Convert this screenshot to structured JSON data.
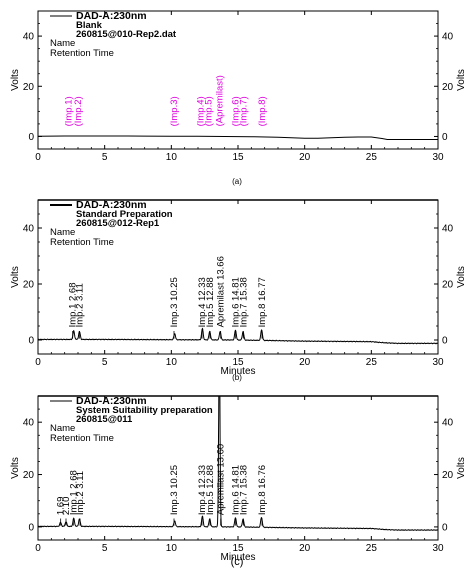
{
  "chart_data": [
    {
      "type": "line",
      "caption": "(a)",
      "legend": [
        "DAD-A:230nm",
        "Blank",
        "260815@010-Rep2.dat"
      ],
      "info": [
        "Name",
        "Retention Time"
      ],
      "xlabel": "",
      "ylabel": "Volts",
      "xlim": [
        0,
        30
      ],
      "ylim": [
        -5,
        50
      ],
      "xticks": [
        0,
        5,
        10,
        15,
        20,
        25,
        30
      ],
      "yticks": [
        0,
        20,
        40
      ],
      "label_color": "#e000e0",
      "trace_color": "#000000",
      "x": [
        0,
        2,
        5,
        8,
        10,
        12,
        14,
        16,
        18,
        19,
        20,
        21,
        22,
        23,
        24,
        25,
        25.8,
        26.2,
        27,
        28,
        29,
        30
      ],
      "y": [
        0.1,
        0.2,
        0.2,
        0.15,
        0.1,
        0.05,
        0.0,
        -0.1,
        -0.3,
        -0.5,
        -0.7,
        -0.7,
        -0.5,
        -0.3,
        -0.2,
        -0.2,
        -0.8,
        -1.2,
        -1.2,
        -1.2,
        -1.2,
        -1.2
      ],
      "peak_labels": [
        {
          "x": 2.3,
          "text": "(Imp.1)"
        },
        {
          "x": 3.0,
          "text": "(Imp.2)"
        },
        {
          "x": 10.2,
          "text": "(Imp.3)"
        },
        {
          "x": 12.2,
          "text": "(Imp.4)"
        },
        {
          "x": 12.8,
          "text": "(Imp.5)"
        },
        {
          "x": 13.6,
          "text": "(Apremilast)"
        },
        {
          "x": 14.8,
          "text": "(Imp.6)"
        },
        {
          "x": 15.4,
          "text": "(Imp.7)"
        },
        {
          "x": 16.8,
          "text": "(Imp.8)"
        }
      ]
    },
    {
      "type": "line",
      "caption": "(b)",
      "legend": [
        "DAD-A:230nm",
        "Standard Preparation",
        "260815@012-Rep1"
      ],
      "info": [
        "Name",
        "Retention Time"
      ],
      "xlabel": "Minutes",
      "ylabel": "Volts",
      "xlim": [
        0,
        30
      ],
      "ylim": [
        -5,
        50
      ],
      "xticks": [
        0,
        5,
        10,
        15,
        20,
        25,
        30
      ],
      "yticks": [
        0,
        20,
        40
      ],
      "label_color": "#000000",
      "trace_color": "#000000",
      "baseline": [
        [
          0,
          0.2
        ],
        [
          5,
          0.2
        ],
        [
          10,
          0.1
        ],
        [
          15,
          0.0
        ],
        [
          20,
          -0.4
        ],
        [
          25,
          -0.6
        ],
        [
          26,
          -1.0
        ],
        [
          27,
          -1.2
        ],
        [
          30,
          -1.2
        ]
      ],
      "peaks": [
        {
          "rt": 2.68,
          "h": 3.0
        },
        {
          "rt": 3.11,
          "h": 2.8
        },
        {
          "rt": 10.25,
          "h": 2.2
        },
        {
          "rt": 12.33,
          "h": 4.0
        },
        {
          "rt": 12.88,
          "h": 3.0
        },
        {
          "rt": 13.66,
          "h": 3.0
        },
        {
          "rt": 14.81,
          "h": 3.5
        },
        {
          "rt": 15.38,
          "h": 3.0
        },
        {
          "rt": 16.77,
          "h": 3.8
        }
      ],
      "peak_labels": [
        {
          "x": 2.6,
          "text": "Imp.1 2.68"
        },
        {
          "x": 3.1,
          "text": "Imp.2 3.11"
        },
        {
          "x": 10.2,
          "text": "Imp.3 10.25"
        },
        {
          "x": 12.3,
          "text": "Imp.4 12.33"
        },
        {
          "x": 12.9,
          "text": "Imp.5 12.88"
        },
        {
          "x": 13.7,
          "text": "Apremilast 13.66"
        },
        {
          "x": 14.8,
          "text": "Imp.6 14.81"
        },
        {
          "x": 15.4,
          "text": "Imp.7 15.38"
        },
        {
          "x": 16.8,
          "text": "Imp.8 16.77"
        }
      ]
    },
    {
      "type": "line",
      "caption": "(c)",
      "legend": [
        "DAD-A:230nm",
        "System Suitability preparation",
        "260815@011"
      ],
      "info": [
        "Name",
        "Retention Time"
      ],
      "xlabel": "Minutes",
      "ylabel": "Volts",
      "xlim": [
        0,
        30
      ],
      "ylim": [
        -5,
        50
      ],
      "xticks": [
        0,
        5,
        10,
        15,
        20,
        25,
        30
      ],
      "yticks": [
        0,
        20,
        40
      ],
      "label_color": "#000000",
      "trace_color": "#000000",
      "baseline": [
        [
          0,
          0.2
        ],
        [
          5,
          0.2
        ],
        [
          10,
          0.1
        ],
        [
          15,
          0.0
        ],
        [
          20,
          -0.4
        ],
        [
          25,
          -0.6
        ],
        [
          26,
          -1.0
        ],
        [
          27,
          -1.2
        ],
        [
          30,
          -1.2
        ]
      ],
      "peaks": [
        {
          "rt": 1.69,
          "h": 1.5
        },
        {
          "rt": 2.1,
          "h": 1.8
        },
        {
          "rt": 2.68,
          "h": 3.0
        },
        {
          "rt": 3.11,
          "h": 2.8
        },
        {
          "rt": 10.25,
          "h": 2.2
        },
        {
          "rt": 12.33,
          "h": 4.0
        },
        {
          "rt": 12.88,
          "h": 3.0
        },
        {
          "rt": 13.6,
          "h": 70
        },
        {
          "rt": 14.81,
          "h": 3.5
        },
        {
          "rt": 15.38,
          "h": 3.0
        },
        {
          "rt": 16.76,
          "h": 3.8
        }
      ],
      "peak_labels": [
        {
          "x": 1.7,
          "text": "1.69"
        },
        {
          "x": 2.1,
          "text": "2.10"
        },
        {
          "x": 2.65,
          "text": "Imp.1 2.68"
        },
        {
          "x": 3.15,
          "text": "Imp.2 3.11"
        },
        {
          "x": 10.2,
          "text": "Imp.3 10.25"
        },
        {
          "x": 12.3,
          "text": "Imp.4 12.33"
        },
        {
          "x": 12.9,
          "text": "Imp.5 12.88"
        },
        {
          "x": 13.7,
          "text": "Apremilast 13.60"
        },
        {
          "x": 14.8,
          "text": "Imp.6 14.81"
        },
        {
          "x": 15.4,
          "text": "Imp.7 15.38"
        },
        {
          "x": 16.8,
          "text": "Imp.8 16.76"
        }
      ]
    }
  ]
}
